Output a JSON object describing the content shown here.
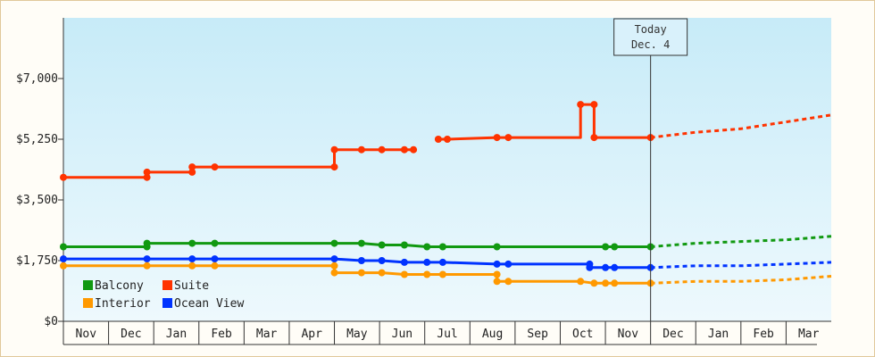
{
  "chart_data": {
    "type": "line",
    "ylim": [
      0,
      8750
    ],
    "yticks": [
      {
        "value": 0,
        "label": "$0"
      },
      {
        "value": 1750,
        "label": "$1,750"
      },
      {
        "value": 3500,
        "label": "$3,500"
      },
      {
        "value": 5250,
        "label": "$5,250"
      },
      {
        "value": 7000,
        "label": "$7,000"
      }
    ],
    "months": [
      "Nov",
      "Dec",
      "Jan",
      "Feb",
      "Mar",
      "Apr",
      "May",
      "Jun",
      "Jul",
      "Aug",
      "Sep",
      "Oct",
      "Nov",
      "Dec",
      "Jan",
      "Feb",
      "Mar"
    ],
    "xlim": [
      0,
      17
    ],
    "today": {
      "line1": "Today",
      "line2": "Dec. 4",
      "x": 13.0
    },
    "legend": {
      "placement": "bottom-left"
    },
    "grid": false,
    "series": [
      {
        "name": "Suite",
        "color": "#ff3300",
        "segments": [
          [
            [
              0.0,
              4150
            ],
            [
              1.85,
              4150
            ],
            [
              1.85,
              4300
            ],
            [
              2.85,
              4300
            ],
            [
              2.85,
              4450
            ],
            [
              3.35,
              4450
            ],
            [
              6.0,
              4450
            ],
            [
              6.0,
              4950
            ],
            [
              6.6,
              4950
            ],
            [
              7.05,
              4950
            ],
            [
              7.55,
              4950
            ],
            [
              7.75,
              4950
            ]
          ],
          [
            [
              8.3,
              5250
            ],
            [
              8.5,
              5250
            ],
            [
              9.6,
              5300
            ],
            [
              9.85,
              5300
            ],
            [
              11.45,
              5300
            ],
            [
              11.45,
              6250
            ],
            [
              11.75,
              6250
            ],
            [
              11.75,
              5300
            ],
            [
              13.0,
              5300
            ]
          ]
        ],
        "points": [
          [
            0.0,
            4150
          ],
          [
            1.85,
            4150
          ],
          [
            1.85,
            4300
          ],
          [
            2.85,
            4300
          ],
          [
            2.85,
            4450
          ],
          [
            3.35,
            4450
          ],
          [
            6.0,
            4450
          ],
          [
            6.0,
            4950
          ],
          [
            6.6,
            4950
          ],
          [
            7.05,
            4950
          ],
          [
            7.55,
            4950
          ],
          [
            7.75,
            4950
          ],
          [
            8.3,
            5250
          ],
          [
            8.5,
            5250
          ],
          [
            9.6,
            5300
          ],
          [
            9.85,
            5300
          ],
          [
            11.45,
            6250
          ],
          [
            11.75,
            6250
          ],
          [
            11.75,
            5300
          ],
          [
            13.0,
            5300
          ]
        ],
        "forecast": [
          [
            13.0,
            5300
          ],
          [
            14.0,
            5450
          ],
          [
            15.0,
            5550
          ],
          [
            16.0,
            5750
          ],
          [
            17.0,
            5950
          ]
        ]
      },
      {
        "name": "Balcony",
        "color": "#119911",
        "segments": [
          [
            [
              0.0,
              2150
            ],
            [
              1.85,
              2150
            ],
            [
              1.85,
              2250
            ],
            [
              2.85,
              2250
            ],
            [
              6.0,
              2250
            ],
            [
              6.6,
              2250
            ],
            [
              7.05,
              2200
            ],
            [
              7.55,
              2200
            ],
            [
              8.05,
              2150
            ],
            [
              8.4,
              2150
            ],
            [
              9.6,
              2150
            ],
            [
              12.0,
              2150
            ],
            [
              12.2,
              2150
            ],
            [
              13.0,
              2150
            ]
          ]
        ],
        "points": [
          [
            0.0,
            2150
          ],
          [
            1.85,
            2150
          ],
          [
            1.85,
            2250
          ],
          [
            2.85,
            2250
          ],
          [
            3.35,
            2250
          ],
          [
            6.0,
            2250
          ],
          [
            6.6,
            2250
          ],
          [
            7.05,
            2200
          ],
          [
            7.55,
            2200
          ],
          [
            8.05,
            2150
          ],
          [
            8.4,
            2150
          ],
          [
            9.6,
            2150
          ],
          [
            12.0,
            2150
          ],
          [
            12.2,
            2150
          ],
          [
            13.0,
            2150
          ]
        ],
        "forecast": [
          [
            13.0,
            2150
          ],
          [
            14.0,
            2250
          ],
          [
            15.0,
            2300
          ],
          [
            16.0,
            2350
          ],
          [
            17.0,
            2450
          ]
        ]
      },
      {
        "name": "Ocean View",
        "color": "#0033ff",
        "segments": [
          [
            [
              0.0,
              1800
            ],
            [
              6.0,
              1800
            ],
            [
              6.6,
              1750
            ],
            [
              7.05,
              1750
            ],
            [
              7.55,
              1700
            ],
            [
              8.05,
              1700
            ],
            [
              8.4,
              1700
            ],
            [
              9.6,
              1650
            ],
            [
              9.85,
              1650
            ],
            [
              11.65,
              1650
            ],
            [
              11.65,
              1550
            ],
            [
              12.0,
              1550
            ],
            [
              12.2,
              1550
            ],
            [
              13.0,
              1550
            ]
          ]
        ],
        "points": [
          [
            0.0,
            1800
          ],
          [
            1.85,
            1800
          ],
          [
            2.85,
            1800
          ],
          [
            3.35,
            1800
          ],
          [
            6.0,
            1800
          ],
          [
            6.6,
            1750
          ],
          [
            7.05,
            1750
          ],
          [
            7.55,
            1700
          ],
          [
            8.05,
            1700
          ],
          [
            8.4,
            1700
          ],
          [
            9.6,
            1650
          ],
          [
            9.85,
            1650
          ],
          [
            11.65,
            1650
          ],
          [
            11.65,
            1550
          ],
          [
            12.0,
            1550
          ],
          [
            12.2,
            1550
          ],
          [
            13.0,
            1550
          ]
        ],
        "forecast": [
          [
            13.0,
            1550
          ],
          [
            14.0,
            1600
          ],
          [
            15.0,
            1600
          ],
          [
            16.0,
            1650
          ],
          [
            17.0,
            1700
          ]
        ]
      },
      {
        "name": "Interior",
        "color": "#ff9900",
        "segments": [
          [
            [
              0.0,
              1600
            ],
            [
              6.0,
              1600
            ],
            [
              6.0,
              1400
            ],
            [
              6.6,
              1400
            ],
            [
              7.05,
              1400
            ],
            [
              7.55,
              1350
            ],
            [
              8.05,
              1350
            ],
            [
              8.4,
              1350
            ],
            [
              9.6,
              1350
            ],
            [
              9.6,
              1150
            ],
            [
              9.85,
              1150
            ],
            [
              11.45,
              1150
            ],
            [
              11.75,
              1100
            ],
            [
              12.0,
              1100
            ],
            [
              12.2,
              1100
            ],
            [
              13.0,
              1100
            ]
          ]
        ],
        "points": [
          [
            0.0,
            1600
          ],
          [
            1.85,
            1600
          ],
          [
            2.85,
            1600
          ],
          [
            3.35,
            1600
          ],
          [
            6.0,
            1600
          ],
          [
            6.0,
            1400
          ],
          [
            6.6,
            1400
          ],
          [
            7.05,
            1400
          ],
          [
            7.55,
            1350
          ],
          [
            8.05,
            1350
          ],
          [
            8.4,
            1350
          ],
          [
            9.6,
            1350
          ],
          [
            9.6,
            1150
          ],
          [
            9.85,
            1150
          ],
          [
            11.45,
            1150
          ],
          [
            11.75,
            1100
          ],
          [
            12.0,
            1100
          ],
          [
            12.2,
            1100
          ],
          [
            13.0,
            1100
          ]
        ],
        "forecast": [
          [
            13.0,
            1100
          ],
          [
            14.0,
            1150
          ],
          [
            15.0,
            1150
          ],
          [
            16.0,
            1200
          ],
          [
            17.0,
            1300
          ]
        ]
      }
    ]
  },
  "legend_items": [
    {
      "label": "Balcony",
      "color": "#119911"
    },
    {
      "label": "Suite",
      "color": "#ff3300"
    },
    {
      "label": "Interior",
      "color": "#ff9900"
    },
    {
      "label": "Ocean View",
      "color": "#0033ff"
    }
  ]
}
